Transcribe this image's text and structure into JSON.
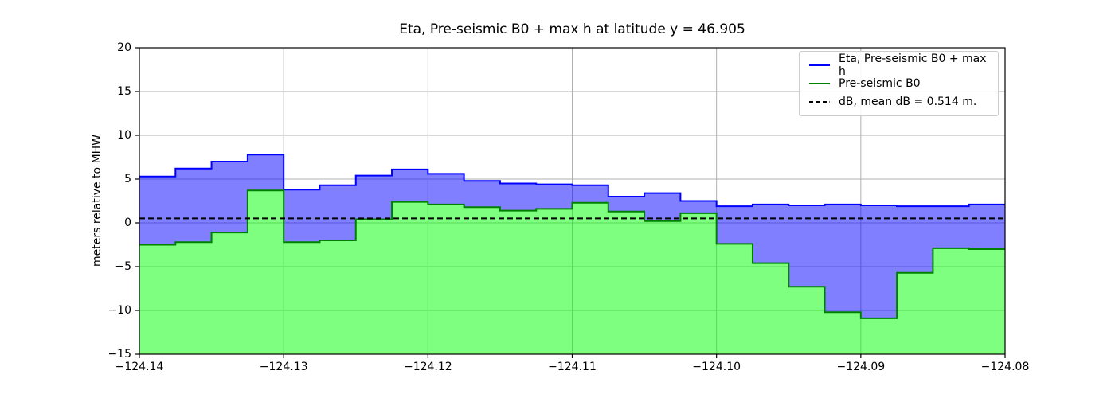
{
  "title": "Eta, Pre-seismic B0 + max h at latitude y = 46.905",
  "ylabel": "meters relative to MHW",
  "chart_data": {
    "type": "area",
    "subtype": "step-post-cross-section",
    "grid": true,
    "grid_color": "#b0b0b0",
    "background": "#ffffff",
    "legend_position": "upper right",
    "xlim": [
      -124.14,
      -124.08
    ],
    "ylim": [
      -15,
      20
    ],
    "x_start": -124.14,
    "x_step": 0.0025,
    "x_ticks": [
      {
        "value": -124.14,
        "label": "−124.14"
      },
      {
        "value": -124.13,
        "label": "−124.13"
      },
      {
        "value": -124.12,
        "label": "−124.12"
      },
      {
        "value": -124.11,
        "label": "−124.11"
      },
      {
        "value": -124.1,
        "label": "−124.10"
      },
      {
        "value": -124.09,
        "label": "−124.09"
      },
      {
        "value": -124.08,
        "label": "−124.08"
      }
    ],
    "y_ticks": [
      {
        "value": 20,
        "label": "20"
      },
      {
        "value": 15,
        "label": "15"
      },
      {
        "value": 10,
        "label": "10"
      },
      {
        "value": 5,
        "label": "5"
      },
      {
        "value": 0,
        "label": "0"
      },
      {
        "value": -5,
        "label": "−5"
      },
      {
        "value": -10,
        "label": "−10"
      },
      {
        "value": -15,
        "label": "−15"
      }
    ],
    "series": [
      {
        "name": "Eta, Pre-seismic B0 + max h",
        "type": "step-area",
        "line_color": "#0000ff",
        "fill_color": "#0000ff",
        "fill_opacity": 0.5,
        "fill_to": "series-1",
        "values": [
          5.3,
          6.2,
          7.0,
          7.8,
          3.8,
          4.3,
          5.4,
          6.1,
          5.6,
          4.8,
          4.5,
          4.4,
          4.3,
          3.0,
          3.4,
          2.5,
          1.9,
          2.1,
          2.0,
          2.1,
          2.0,
          1.9,
          1.9,
          2.1
        ]
      },
      {
        "name": "Pre-seismic B0",
        "type": "step-area",
        "line_color": "#008000",
        "fill_color": "#00ff00",
        "fill_opacity": 0.5,
        "fill_to": "bottom",
        "values": [
          -2.5,
          -2.2,
          -1.1,
          3.7,
          -2.2,
          -2.0,
          0.4,
          2.4,
          2.1,
          1.8,
          1.4,
          1.6,
          2.3,
          1.3,
          0.2,
          1.1,
          -2.4,
          -4.6,
          -7.3,
          -10.2,
          -10.9,
          -5.7,
          -2.9,
          -3.0
        ]
      },
      {
        "name": "dB, mean dB = 0.514 m.",
        "type": "hline",
        "line_style": "dashed",
        "line_color": "#000000",
        "value": 0.514
      }
    ]
  }
}
